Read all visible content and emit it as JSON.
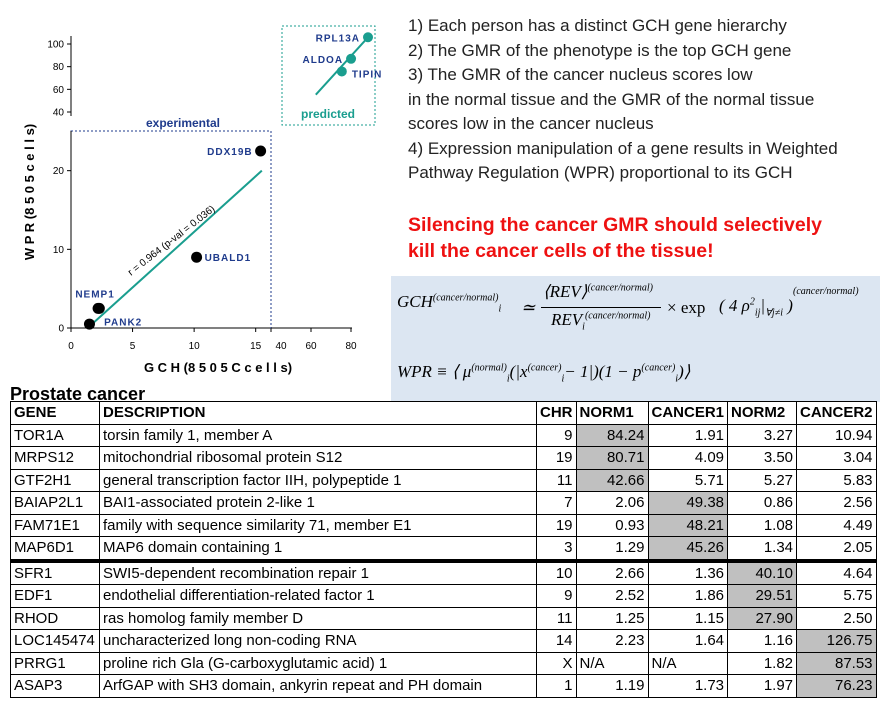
{
  "plot": {
    "title_experimental": "experimental",
    "title_predicted": "predicted",
    "xlabel": "G C H  (8 5 0 5 C  c e l l s)",
    "ylabel": "W P R  (8 5 0 5  c e l l s)",
    "fit_label": "r = 0.964 (p-val = 0.036)",
    "colors": {
      "experimental": "#000000",
      "predicted": "#1a9e8f",
      "fit_line": "#1a9e8f",
      "frame": "#1f3b8c",
      "label": "#1f3b8c"
    }
  },
  "chart_data": [
    {
      "type": "scatter",
      "name": "experimental",
      "xlabel": "GCH (8505C cells)",
      "ylabel": "WPR (8505 cells)",
      "xlim": [
        0,
        16
      ],
      "ylim": [
        0,
        30
      ],
      "x_ticks": [
        "0",
        "5",
        "10",
        "15"
      ],
      "y_ticks": [
        "0",
        "10",
        "20"
      ],
      "points": [
        {
          "label": "",
          "x": 1.5,
          "y": 0.5
        },
        {
          "label": "PANK2",
          "x": 2.2,
          "y": 2.5
        },
        {
          "label": "NEMP1",
          "x": 2.3,
          "y": 2.5
        },
        {
          "label": "UBALD1",
          "x": 10.2,
          "y": 9.0
        },
        {
          "label": "DDX19B",
          "x": 15.4,
          "y": 22.5
        }
      ],
      "fit_line": {
        "x": [
          1.5,
          15.5
        ],
        "y": [
          0.2,
          20.0
        ]
      }
    },
    {
      "type": "scatter",
      "name": "predicted",
      "xlim": [
        40,
        90
      ],
      "ylim": [
        40,
        100
      ],
      "x_ticks": [
        "40",
        "60",
        "80"
      ],
      "y_ticks": [
        "40",
        "60",
        "80",
        "100"
      ],
      "points": [
        {
          "label": "TIPIN",
          "x": 73,
          "y": 72
        },
        {
          "label": "ALDOA",
          "x": 79,
          "y": 82
        },
        {
          "label": "RPL13A",
          "x": 90,
          "y": 99
        }
      ]
    }
  ],
  "notes": [
    "1)  Each person has a distinct GCH gene hierarchy",
    "2)  The GMR of the phenotype is the top GCH gene",
    "3)  The GMR of the cancer nucleus scores low",
    "in the normal tissue and the GMR of the normal tissue",
    "scores low in the cancer nucleus",
    "4) Expression manipulation of a gene results in  Weighted",
    "Pathway Regulation (WPR) proportional to its GCH"
  ],
  "headline": [
    "Silencing the cancer GMR should selectively",
    "kill the cancer cells of the tissue!"
  ],
  "formula": {
    "gch_lhs": "GCH",
    "gch_lhs_sup": "(cancer/normal)",
    "gch_lhs_sub": "i",
    "approx": "≃",
    "rev": "REV",
    "rev_sup": "(cancer/normal)",
    "rev_sub": "i",
    "times_exp": "× exp",
    "four_rho": "4 ρ",
    "rho_sup": "2",
    "rho_sub": "ij",
    "cond": "∀j≠i",
    "outer_sup": "(cancer/normal)",
    "wpr": "WPR ≡ ⟨ μ",
    "mu_sup": "(normal)",
    "mu_sub": "i",
    "x_part": "(|x",
    "x_sup": "(cancer)",
    "x_sub": "i",
    "minus_one": "− 1|)(1 − p",
    "p_sup": "(cancer)",
    "p_sub": "i",
    "close": ")⟩"
  },
  "table": {
    "title": "Prostate cancer",
    "columns": [
      "GENE",
      "DESCRIPTION",
      "CHR",
      "NORM1",
      "CANCER1",
      "NORM2",
      "CANCER2"
    ],
    "rows": [
      {
        "gene": "TOR1A",
        "description": "torsin family 1, member A",
        "chr": "9",
        "norm1": "84.24",
        "cancer1": "1.91",
        "norm2": "3.27",
        "cancer2": "10.94",
        "hl": "norm1"
      },
      {
        "gene": "MRPS12",
        "description": "mitochondrial ribosomal protein S12",
        "chr": "19",
        "norm1": "80.71",
        "cancer1": "4.09",
        "norm2": "3.50",
        "cancer2": "3.04",
        "hl": "norm1"
      },
      {
        "gene": "GTF2H1",
        "description": "general transcription factor IIH, polypeptide 1",
        "chr": "11",
        "norm1": "42.66",
        "cancer1": "5.71",
        "norm2": "5.27",
        "cancer2": "5.83",
        "hl": "norm1"
      },
      {
        "gene": "BAIAP2L1",
        "description": "BAI1-associated protein 2-like 1",
        "chr": "7",
        "norm1": "2.06",
        "cancer1": "49.38",
        "norm2": "0.86",
        "cancer2": "2.56",
        "hl": "cancer1"
      },
      {
        "gene": "FAM71E1",
        "description": "family with sequence similarity 71, member E1",
        "chr": "19",
        "norm1": "0.93",
        "cancer1": "48.21",
        "norm2": "1.08",
        "cancer2": "4.49",
        "hl": "cancer1"
      },
      {
        "gene": "MAP6D1",
        "description": "MAP6 domain containing 1",
        "chr": "3",
        "norm1": "1.29",
        "cancer1": "45.26",
        "norm2": "1.34",
        "cancer2": "2.05",
        "hl": "cancer1"
      },
      {
        "gene": "SFR1",
        "description": "SWI5-dependent recombination repair 1",
        "chr": "10",
        "norm1": "2.66",
        "cancer1": "1.36",
        "norm2": "40.10",
        "cancer2": "4.64",
        "hl": "norm2"
      },
      {
        "gene": "EDF1",
        "description": "endothelial differentiation-related factor 1",
        "chr": "9",
        "norm1": "2.52",
        "cancer1": "1.86",
        "norm2": "29.51",
        "cancer2": "5.75",
        "hl": "norm2"
      },
      {
        "gene": "RHOD",
        "description": "ras homolog family member D",
        "chr": "11",
        "norm1": "1.25",
        "cancer1": "1.15",
        "norm2": "27.90",
        "cancer2": "2.50",
        "hl": "norm2"
      },
      {
        "gene": "LOC145474",
        "description": "uncharacterized long non-coding RNA",
        "chr": "14",
        "norm1": "2.23",
        "cancer1": "1.64",
        "norm2": "1.16",
        "cancer2": "126.75",
        "hl": "cancer2"
      },
      {
        "gene": "PRRG1",
        "description": "proline rich Gla (G-carboxyglutamic acid) 1",
        "chr": "X",
        "norm1": "N/A",
        "cancer1": "N/A",
        "norm2": "1.82",
        "cancer2": "87.53",
        "hl": "cancer2"
      },
      {
        "gene": "ASAP3",
        "description": "ArfGAP with SH3 domain, ankyrin repeat and PH domain",
        "chr": "1",
        "norm1": "1.19",
        "cancer1": "1.73",
        "norm2": "1.97",
        "cancer2": "76.23",
        "hl": "cancer2"
      }
    ]
  }
}
